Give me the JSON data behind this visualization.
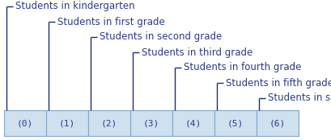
{
  "labels": [
    "(0)",
    "(1)",
    "(2)",
    "(3)",
    "(4)",
    "(5)",
    "(6)"
  ],
  "annotations": [
    "Students in kindergarten",
    "Students in first grade",
    "Students in second grade",
    "Students in third grade",
    "Students in fourth grade",
    "Students in fifth grade",
    "Students in sixth grade"
  ],
  "cell_color": "#cfe0ef",
  "cell_edge_color": "#7fa8c8",
  "text_color": "#2b3a8a",
  "line_color": "#1e2d78",
  "label_fontsize": 8.0,
  "annot_fontsize": 8.5,
  "n_cells": 7,
  "background_color": "#ffffff",
  "fig_width": 4.1,
  "fig_height": 1.74,
  "dpi": 100
}
